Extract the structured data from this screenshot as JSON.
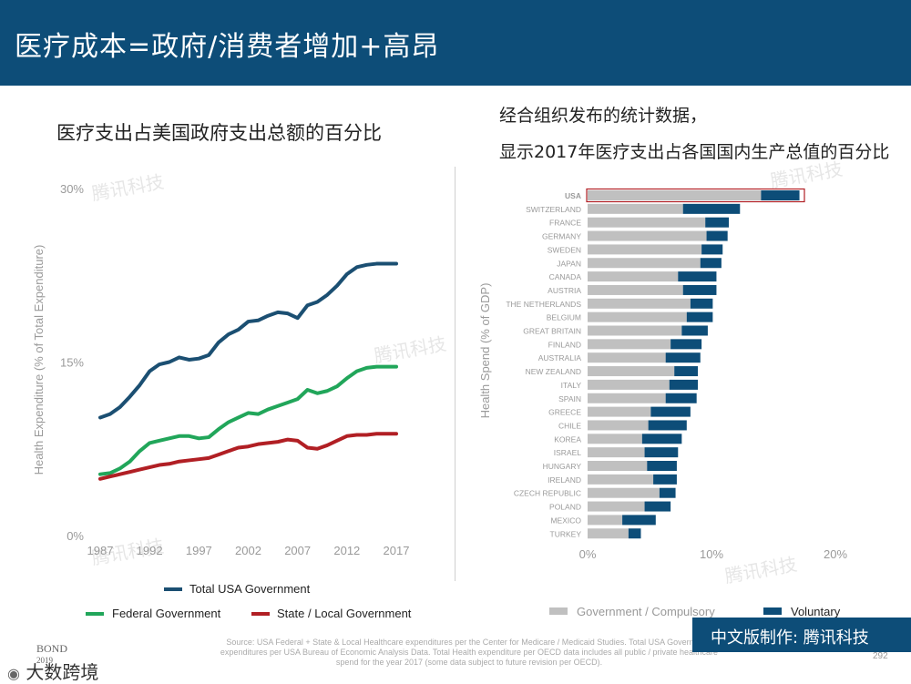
{
  "header": {
    "title": "医疗成本=政府/消费者增加+高昂"
  },
  "left_chart_title": "医疗支出占美国政府支出总额的百分比",
  "right_chart_title_line1": "经合组织发布的统计数据，",
  "right_chart_title_line2": "显示2017年医疗支出占各国国内生产总值的百分比",
  "colors": {
    "header": "#0d4d78",
    "total": "#1b4f72",
    "federal": "#21a65a",
    "state": "#b11f24",
    "government_bar": "#c0c0c0",
    "voluntary_bar": "#0d4d78",
    "usa_highlight": "#b11f24"
  },
  "chart_data": [
    {
      "type": "line",
      "title": "医疗支出占美国政府支出总额的百分比",
      "ylabel": "Health Expenditure (% of Total Expenditure)",
      "xlabel": "",
      "xlim": [
        1987,
        2017
      ],
      "ylim": [
        0,
        30
      ],
      "x_ticks": [
        "1987",
        "1992",
        "1997",
        "2002",
        "2007",
        "2012",
        "2017"
      ],
      "y_ticks": [
        "0%",
        "15%",
        "30%"
      ],
      "x": [
        1987,
        1988,
        1989,
        1990,
        1991,
        1992,
        1993,
        1994,
        1995,
        1996,
        1997,
        1998,
        1999,
        2000,
        2001,
        2002,
        2003,
        2004,
        2005,
        2006,
        2007,
        2008,
        2009,
        2010,
        2011,
        2012,
        2013,
        2014,
        2015,
        2016,
        2017
      ],
      "series": [
        {
          "name": "Total USA Government",
          "color": "#1b4f72",
          "values": [
            10.2,
            10.5,
            11.1,
            12.0,
            13.0,
            14.2,
            14.8,
            15.0,
            15.4,
            15.2,
            15.3,
            15.6,
            16.7,
            17.4,
            17.8,
            18.5,
            18.6,
            19.0,
            19.3,
            19.2,
            18.8,
            19.9,
            20.2,
            20.8,
            21.6,
            22.6,
            23.2,
            23.4,
            23.5,
            23.5,
            23.5
          ]
        },
        {
          "name": "Federal Government",
          "color": "#21a65a",
          "values": [
            5.3,
            5.4,
            5.8,
            6.4,
            7.3,
            8.0,
            8.2,
            8.4,
            8.6,
            8.6,
            8.4,
            8.5,
            9.2,
            9.8,
            10.2,
            10.6,
            10.5,
            10.9,
            11.2,
            11.5,
            11.8,
            12.6,
            12.3,
            12.5,
            12.9,
            13.6,
            14.2,
            14.5,
            14.6,
            14.6,
            14.6
          ]
        },
        {
          "name": "State / Local Government",
          "color": "#b11f24",
          "values": [
            4.9,
            5.1,
            5.3,
            5.5,
            5.7,
            5.9,
            6.1,
            6.2,
            6.4,
            6.5,
            6.6,
            6.7,
            7.0,
            7.3,
            7.6,
            7.7,
            7.9,
            8.0,
            8.1,
            8.3,
            8.2,
            7.6,
            7.5,
            7.8,
            8.2,
            8.6,
            8.7,
            8.7,
            8.8,
            8.8,
            8.8
          ]
        }
      ],
      "legend": [
        "Total USA Government",
        "Federal Government",
        "State / Local Government"
      ]
    },
    {
      "type": "bar",
      "orientation": "horizontal",
      "stacked": true,
      "title": "显示2017年医疗支出占各国国内生产总值的百分比",
      "ylabel": "Health Spend (% of GDP)",
      "xlim": [
        0,
        20
      ],
      "x_ticks": [
        "0%",
        "10%",
        "20%"
      ],
      "categories": [
        "USA",
        "SWITZERLAND",
        "FRANCE",
        "GERMANY",
        "SWEDEN",
        "JAPAN",
        "CANADA",
        "AUSTRIA",
        "THE NETHERLANDS",
        "BELGIUM",
        "GREAT BRITAIN",
        "FINLAND",
        "AUSTRALIA",
        "NEW ZEALAND",
        "ITALY",
        "SPAIN",
        "GREECE",
        "CHILE",
        "KOREA",
        "ISRAEL",
        "HUNGARY",
        "IRELAND",
        "CZECH REPUBLIC",
        "POLAND",
        "MEXICO",
        "TURKEY"
      ],
      "series": [
        {
          "name": "Government / Compulsory",
          "color": "#c0c0c0",
          "values": [
            14.0,
            7.7,
            9.5,
            9.6,
            9.2,
            9.1,
            7.3,
            7.7,
            8.3,
            8.0,
            7.6,
            6.7,
            6.3,
            7.0,
            6.6,
            6.3,
            5.1,
            4.9,
            4.4,
            4.6,
            4.8,
            5.3,
            5.8,
            4.6,
            2.8,
            3.3
          ]
        },
        {
          "name": "Voluntary",
          "color": "#0d4d78",
          "values": [
            3.1,
            4.6,
            1.9,
            1.7,
            1.7,
            1.7,
            3.1,
            2.7,
            1.8,
            2.1,
            2.1,
            2.5,
            2.8,
            1.9,
            2.3,
            2.5,
            3.2,
            3.1,
            3.2,
            2.7,
            2.4,
            1.9,
            1.3,
            2.1,
            2.7,
            1.0
          ]
        }
      ],
      "highlight": "USA",
      "legend": [
        "Government / Compulsory",
        "Voluntary"
      ]
    }
  ],
  "footer": {
    "source_line1": "Source: USA Federal + State & Local Healthcare expenditures per the Center for Medicare / Medicaid Studies. Total USA Government",
    "source_line2": "expenditures per USA Bureau of Economic Analysis Data. Total Health expenditure per OECD data includes all public / private healthcare",
    "source_line3": "spend for the year 2017 (some data subject to future revision per OECD).",
    "brand": "中文版制作: 腾讯科技",
    "page_number": "292",
    "bond_line1": "BOND",
    "bond_line2": "2019",
    "wechat_label": "大数跨境"
  },
  "watermark": "腾讯科技"
}
